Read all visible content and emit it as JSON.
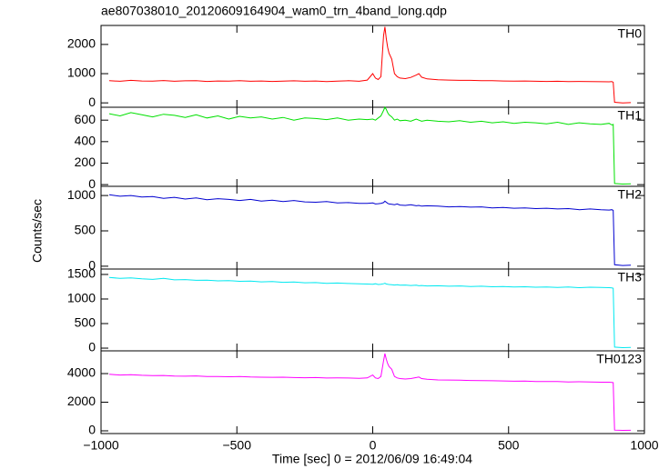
{
  "chart_data": [
    {
      "type": "line",
      "title": "ae807038010_20120609164904_wam0_trn_4band_long.qdp",
      "y_label": "Counts/sec",
      "x": [
        -970,
        -930,
        -890,
        -850,
        -810,
        -770,
        -730,
        -690,
        -650,
        -610,
        -570,
        -530,
        -490,
        -450,
        -410,
        -370,
        -330,
        -290,
        -250,
        -210,
        -170,
        -130,
        -90,
        -50,
        -20,
        0,
        10,
        20,
        30,
        40,
        45,
        50,
        55,
        60,
        70,
        80,
        90,
        100,
        120,
        140,
        160,
        170,
        180,
        200,
        240,
        280,
        320,
        360,
        400,
        440,
        480,
        520,
        560,
        600,
        640,
        680,
        720,
        760,
        800,
        840,
        870,
        880,
        885,
        890,
        920,
        950
      ],
      "xlim": [
        -1000,
        1000
      ],
      "ylim": [
        -150,
        2650
      ],
      "yticks": [
        0,
        1000,
        2000
      ],
      "series": [
        {
          "name": "TH0",
          "color": "#ff0000",
          "values": [
            760,
            740,
            770,
            750,
            745,
            765,
            740,
            755,
            760,
            735,
            750,
            745,
            760,
            740,
            750,
            735,
            745,
            755,
            740,
            750,
            730,
            745,
            760,
            740,
            780,
            1000,
            850,
            800,
            900,
            2300,
            2600,
            2200,
            1900,
            1700,
            1500,
            1000,
            900,
            850,
            830,
            870,
            950,
            1000,
            880,
            820,
            790,
            780,
            770,
            770,
            760,
            760,
            750,
            745,
            750,
            740,
            735,
            740,
            730,
            735,
            730,
            725,
            720,
            730,
            710,
            20,
            0,
            10
          ]
        }
      ]
    },
    {
      "type": "line",
      "x": [
        -970,
        -930,
        -890,
        -850,
        -810,
        -770,
        -730,
        -690,
        -650,
        -610,
        -570,
        -530,
        -490,
        -450,
        -410,
        -370,
        -330,
        -290,
        -250,
        -210,
        -170,
        -130,
        -90,
        -50,
        -20,
        0,
        10,
        20,
        30,
        40,
        45,
        50,
        55,
        60,
        70,
        80,
        90,
        100,
        120,
        140,
        160,
        170,
        180,
        200,
        240,
        280,
        320,
        360,
        400,
        440,
        480,
        520,
        560,
        600,
        640,
        680,
        720,
        760,
        800,
        840,
        870,
        880,
        885,
        890,
        920,
        950
      ],
      "xlim": [
        -1000,
        1000
      ],
      "ylim": [
        -16,
        720
      ],
      "yticks": [
        0,
        200,
        400,
        600
      ],
      "series": [
        {
          "name": "TH1",
          "color": "#00e000",
          "values": [
            660,
            640,
            670,
            650,
            630,
            655,
            645,
            625,
            650,
            620,
            640,
            610,
            635,
            620,
            630,
            610,
            625,
            600,
            620,
            615,
            605,
            620,
            600,
            610,
            605,
            610,
            600,
            620,
            640,
            690,
            720,
            700,
            670,
            650,
            630,
            600,
            610,
            595,
            600,
            590,
            610,
            600,
            590,
            600,
            590,
            585,
            595,
            580,
            590,
            575,
            585,
            570,
            580,
            575,
            565,
            580,
            560,
            575,
            565,
            560,
            570,
            555,
            560,
            10,
            5,
            8
          ]
        }
      ]
    },
    {
      "type": "line",
      "x": [
        -970,
        -930,
        -890,
        -850,
        -810,
        -770,
        -730,
        -690,
        -650,
        -610,
        -570,
        -530,
        -490,
        -450,
        -410,
        -370,
        -330,
        -290,
        -250,
        -210,
        -170,
        -130,
        -90,
        -50,
        -20,
        0,
        10,
        20,
        30,
        40,
        45,
        50,
        55,
        60,
        70,
        80,
        90,
        100,
        120,
        140,
        160,
        170,
        180,
        200,
        240,
        280,
        320,
        360,
        400,
        440,
        480,
        520,
        560,
        600,
        640,
        680,
        720,
        760,
        800,
        840,
        870,
        880,
        885,
        890,
        920,
        950
      ],
      "xlim": [
        -1000,
        1000
      ],
      "ylim": [
        -40,
        1130
      ],
      "yticks": [
        0,
        500,
        1000
      ],
      "series": [
        {
          "name": "TH2",
          "color": "#0000d0",
          "values": [
            1010,
            990,
            1000,
            980,
            985,
            960,
            975,
            950,
            965,
            940,
            955,
            945,
            930,
            945,
            920,
            935,
            915,
            930,
            910,
            905,
            915,
            895,
            900,
            890,
            890,
            895,
            880,
            885,
            890,
            900,
            920,
            905,
            890,
            880,
            875,
            870,
            880,
            865,
            860,
            870,
            855,
            860,
            850,
            855,
            850,
            840,
            845,
            835,
            840,
            825,
            830,
            820,
            825,
            815,
            820,
            810,
            815,
            800,
            810,
            800,
            795,
            800,
            790,
            20,
            10,
            15
          ]
        }
      ]
    },
    {
      "type": "line",
      "x": [
        -970,
        -930,
        -890,
        -850,
        -810,
        -770,
        -730,
        -690,
        -650,
        -610,
        -570,
        -530,
        -490,
        -450,
        -410,
        -370,
        -330,
        -290,
        -250,
        -210,
        -170,
        -130,
        -90,
        -50,
        -20,
        0,
        10,
        20,
        30,
        40,
        45,
        50,
        55,
        60,
        70,
        80,
        90,
        100,
        120,
        140,
        160,
        170,
        180,
        200,
        240,
        280,
        320,
        360,
        400,
        440,
        480,
        520,
        560,
        600,
        640,
        680,
        720,
        760,
        800,
        840,
        870,
        880,
        885,
        890,
        920,
        950
      ],
      "xlim": [
        -1000,
        1000
      ],
      "ylim": [
        -55,
        1610
      ],
      "yticks": [
        0,
        500,
        1000,
        1500
      ],
      "series": [
        {
          "name": "TH3",
          "color": "#00e8f0",
          "values": [
            1440,
            1420,
            1430,
            1410,
            1400,
            1420,
            1390,
            1395,
            1380,
            1385,
            1370,
            1375,
            1360,
            1365,
            1350,
            1355,
            1340,
            1345,
            1330,
            1335,
            1320,
            1325,
            1315,
            1310,
            1305,
            1300,
            1310,
            1295,
            1300,
            1310,
            1320,
            1305,
            1300,
            1295,
            1290,
            1285,
            1290,
            1280,
            1285,
            1275,
            1280,
            1270,
            1275,
            1265,
            1270,
            1260,
            1265,
            1255,
            1260,
            1250,
            1255,
            1245,
            1250,
            1240,
            1245,
            1235,
            1245,
            1230,
            1240,
            1235,
            1230,
            1225,
            1220,
            20,
            10,
            15
          ]
        }
      ]
    },
    {
      "type": "line",
      "x_label": "Time [sec] 0 = 2012/06/09 16:49:04",
      "x": [
        -970,
        -930,
        -890,
        -850,
        -810,
        -770,
        -730,
        -690,
        -650,
        -610,
        -570,
        -530,
        -490,
        -450,
        -410,
        -370,
        -330,
        -290,
        -250,
        -210,
        -170,
        -130,
        -90,
        -50,
        -20,
        0,
        10,
        20,
        30,
        40,
        45,
        50,
        55,
        60,
        70,
        80,
        90,
        100,
        120,
        140,
        160,
        170,
        180,
        200,
        240,
        280,
        320,
        360,
        400,
        440,
        480,
        520,
        560,
        600,
        640,
        680,
        720,
        760,
        800,
        840,
        870,
        880,
        885,
        890,
        920,
        950
      ],
      "xlim": [
        -1000,
        1000
      ],
      "xticks": [
        {
          "value": -1000,
          "label": "−1000"
        },
        {
          "value": -500,
          "label": "−500"
        },
        0,
        500,
        1000
      ],
      "ylim": [
        -190,
        5590
      ],
      "yticks": [
        0,
        2000,
        4000
      ],
      "series": [
        {
          "name": "TH0123",
          "color": "#ff00ff",
          "values": [
            3950,
            3900,
            3920,
            3880,
            3860,
            3870,
            3830,
            3820,
            3840,
            3790,
            3800,
            3780,
            3790,
            3760,
            3750,
            3740,
            3750,
            3720,
            3710,
            3720,
            3690,
            3700,
            3690,
            3670,
            3700,
            3900,
            3700,
            3650,
            3800,
            4900,
            5400,
            5000,
            4700,
            4500,
            4300,
            3800,
            3700,
            3650,
            3620,
            3650,
            3720,
            3760,
            3650,
            3600,
            3560,
            3550,
            3540,
            3520,
            3510,
            3500,
            3490,
            3470,
            3480,
            3450,
            3440,
            3450,
            3420,
            3430,
            3410,
            3400,
            3400,
            3380,
            3370,
            50,
            30,
            40
          ]
        }
      ]
    }
  ]
}
